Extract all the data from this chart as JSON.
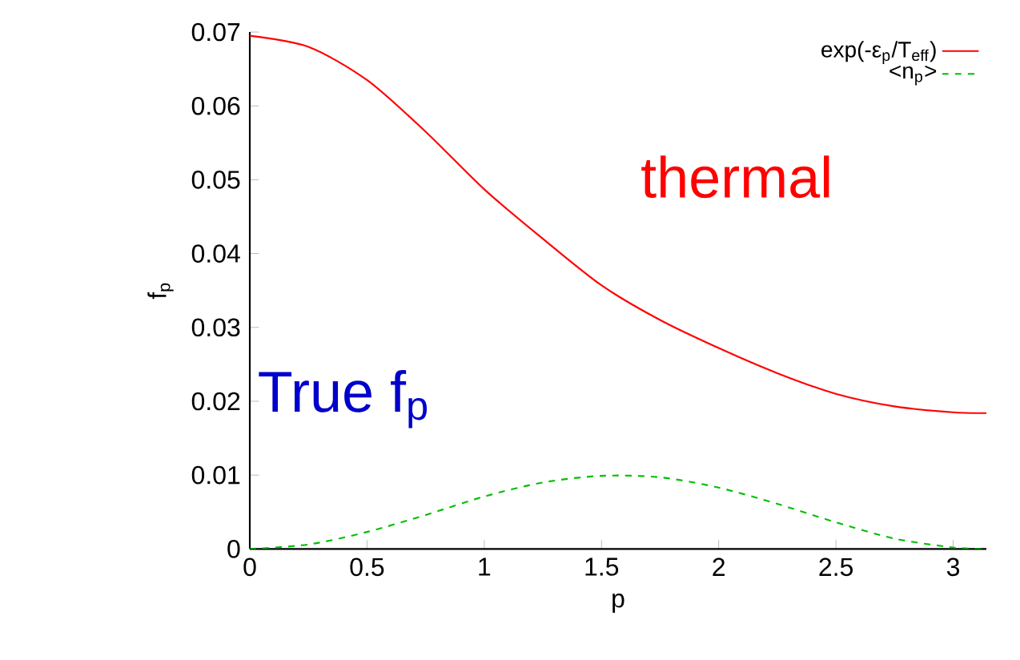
{
  "chart_data": {
    "type": "line",
    "xlabel": "p",
    "ylabel": "f$_{p}$",
    "xlim": [
      0,
      3.1416
    ],
    "ylim": [
      0,
      0.07
    ],
    "xticks": [
      0,
      0.5,
      1,
      1.5,
      2,
      2.5,
      3
    ],
    "yticks": [
      0,
      0.01,
      0.02,
      0.03,
      0.04,
      0.05,
      0.06,
      0.07
    ],
    "grid": false,
    "legend": "top right",
    "marker": "none",
    "annotations": [
      "thermal",
      "True f$_{p}$"
    ],
    "series": [
      {
        "name": "exp(-ε$_{p}$/T$_{eff}$)",
        "color": "#ff0000",
        "line_style": "solid",
        "x": [
          0,
          0.25,
          0.5,
          0.75,
          1,
          1.25,
          1.5,
          1.75,
          2,
          2.25,
          2.5,
          2.75,
          3,
          3.1416
        ],
        "values": [
          0.0695,
          0.068,
          0.0635,
          0.0565,
          0.0487,
          0.042,
          0.0357,
          0.031,
          0.0272,
          0.0238,
          0.021,
          0.0193,
          0.0185,
          0.0184
        ]
      },
      {
        "name": "<n$_{p}$>",
        "color": "#00c000",
        "line_style": "dashed",
        "x": [
          0,
          0.25,
          0.5,
          0.75,
          1,
          1.25,
          1.5,
          1.75,
          2,
          2.25,
          2.5,
          2.75,
          3,
          3.1416
        ],
        "values": [
          0,
          0.0006,
          0.0023,
          0.0046,
          0.0071,
          0.009,
          0.0099,
          0.0097,
          0.0083,
          0.0061,
          0.0036,
          0.0014,
          0.0002,
          0
        ]
      }
    ]
  }
}
